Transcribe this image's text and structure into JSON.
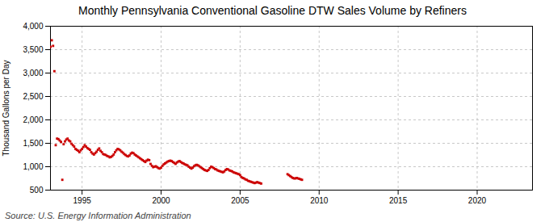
{
  "chart_data": {
    "type": "scatter",
    "title": "Monthly Pennsylvania Conventional Gasoline DTW Sales Volume by Refiners",
    "ylabel": "Thousand Gallons per Day",
    "source": "Source: U.S. Energy Information Administration",
    "color": "#cc0000",
    "marker": "square",
    "grid": true,
    "xlim": [
      1993.0,
      2023.5
    ],
    "xticks": [
      1995,
      2000,
      2005,
      2010,
      2015,
      2020
    ],
    "ylim": [
      500,
      4000
    ],
    "yticks": [
      500,
      {
        "value": 1000,
        "label": "1,000"
      },
      {
        "value": 1500,
        "label": "1,500"
      },
      {
        "value": 2000,
        "label": "2,000"
      },
      {
        "value": 2500,
        "label": "2,500"
      },
      {
        "value": 3000,
        "label": "3,000"
      },
      {
        "value": 3500,
        "label": "3,500"
      },
      {
        "value": 4000,
        "label": "4,000"
      }
    ],
    "x": [
      1993.0,
      1993.083,
      1993.167,
      1993.25,
      1993.333,
      1993.417,
      1993.5,
      1993.583,
      1993.667,
      1993.75,
      1993.833,
      1993.917,
      1994.0,
      1994.083,
      1994.167,
      1994.25,
      1994.333,
      1994.417,
      1994.5,
      1994.583,
      1994.667,
      1994.75,
      1994.833,
      1994.917,
      1995.0,
      1995.083,
      1995.167,
      1995.25,
      1995.333,
      1995.417,
      1995.5,
      1995.583,
      1995.667,
      1995.75,
      1995.833,
      1995.917,
      1996.0,
      1996.083,
      1996.167,
      1996.25,
      1996.333,
      1996.417,
      1996.5,
      1996.583,
      1996.667,
      1996.75,
      1996.833,
      1996.917,
      1997.0,
      1997.083,
      1997.167,
      1997.25,
      1997.333,
      1997.417,
      1997.5,
      1997.583,
      1997.667,
      1997.75,
      1997.833,
      1997.917,
      1998.0,
      1998.083,
      1998.167,
      1998.25,
      1998.333,
      1998.417,
      1998.5,
      1998.583,
      1998.667,
      1998.75,
      1998.833,
      1998.917,
      1999.0,
      1999.083,
      1999.167,
      1999.25,
      1999.333,
      1999.417,
      1999.5,
      1999.583,
      1999.667,
      1999.75,
      1999.833,
      1999.917,
      2000.0,
      2000.083,
      2000.167,
      2000.25,
      2000.333,
      2000.417,
      2000.5,
      2000.583,
      2000.667,
      2000.75,
      2000.833,
      2000.917,
      2001.0,
      2001.083,
      2001.167,
      2001.25,
      2001.333,
      2001.417,
      2001.5,
      2001.583,
      2001.667,
      2001.75,
      2001.833,
      2001.917,
      2002.0,
      2002.083,
      2002.167,
      2002.25,
      2002.333,
      2002.417,
      2002.5,
      2002.583,
      2002.667,
      2002.75,
      2002.833,
      2002.917,
      2003.0,
      2003.083,
      2003.167,
      2003.25,
      2003.333,
      2003.417,
      2003.5,
      2003.583,
      2003.667,
      2003.75,
      2003.833,
      2003.917,
      2004.0,
      2004.083,
      2004.167,
      2004.25,
      2004.333,
      2004.417,
      2004.5,
      2004.583,
      2004.667,
      2004.75,
      2004.833,
      2004.917,
      2005.0,
      2005.083,
      2005.167,
      2005.25,
      2005.333,
      2005.417,
      2005.5,
      2005.583,
      2005.667,
      2005.75,
      2005.833,
      2005.917,
      2006.0,
      2006.083,
      2006.167,
      2006.25,
      2006.333,
      2008.0,
      2008.083,
      2008.167,
      2008.25,
      2008.333,
      2008.417,
      2008.5,
      2008.583,
      2008.667,
      2008.75,
      2008.833,
      2008.917
    ],
    "values": [
      3560,
      3700,
      3580,
      3040,
      1460,
      1600,
      1590,
      1560,
      1530,
      720,
      1480,
      1540,
      1580,
      1600,
      1560,
      1540,
      1490,
      1460,
      1430,
      1380,
      1360,
      1340,
      1310,
      1350,
      1380,
      1420,
      1460,
      1430,
      1400,
      1380,
      1360,
      1310,
      1280,
      1260,
      1290,
      1320,
      1360,
      1390,
      1340,
      1310,
      1270,
      1260,
      1250,
      1230,
      1220,
      1200,
      1210,
      1230,
      1260,
      1310,
      1350,
      1380,
      1370,
      1350,
      1320,
      1300,
      1270,
      1250,
      1230,
      1220,
      1240,
      1280,
      1300,
      1290,
      1260,
      1240,
      1220,
      1200,
      1180,
      1160,
      1140,
      1120,
      1100,
      1130,
      1150,
      1140,
      1060,
      1020,
      990,
      1000,
      1010,
      990,
      970,
      960,
      980,
      1020,
      1050,
      1070,
      1090,
      1110,
      1120,
      1130,
      1120,
      1100,
      1080,
      1060,
      1090,
      1110,
      1120,
      1100,
      1080,
      1070,
      1050,
      1040,
      1030,
      1000,
      980,
      960,
      980,
      1010,
      1030,
      1040,
      1030,
      1010,
      990,
      970,
      950,
      930,
      920,
      910,
      930,
      970,
      1000,
      990,
      970,
      950,
      940,
      920,
      910,
      900,
      890,
      880,
      900,
      930,
      950,
      940,
      920,
      910,
      900,
      880,
      870,
      860,
      850,
      840,
      820,
      780,
      760,
      750,
      730,
      720,
      700,
      690,
      680,
      670,
      660,
      650,
      660,
      670,
      660,
      650,
      640,
      840,
      820,
      800,
      780,
      760,
      750,
      750,
      760,
      750,
      740,
      730,
      720
    ]
  }
}
